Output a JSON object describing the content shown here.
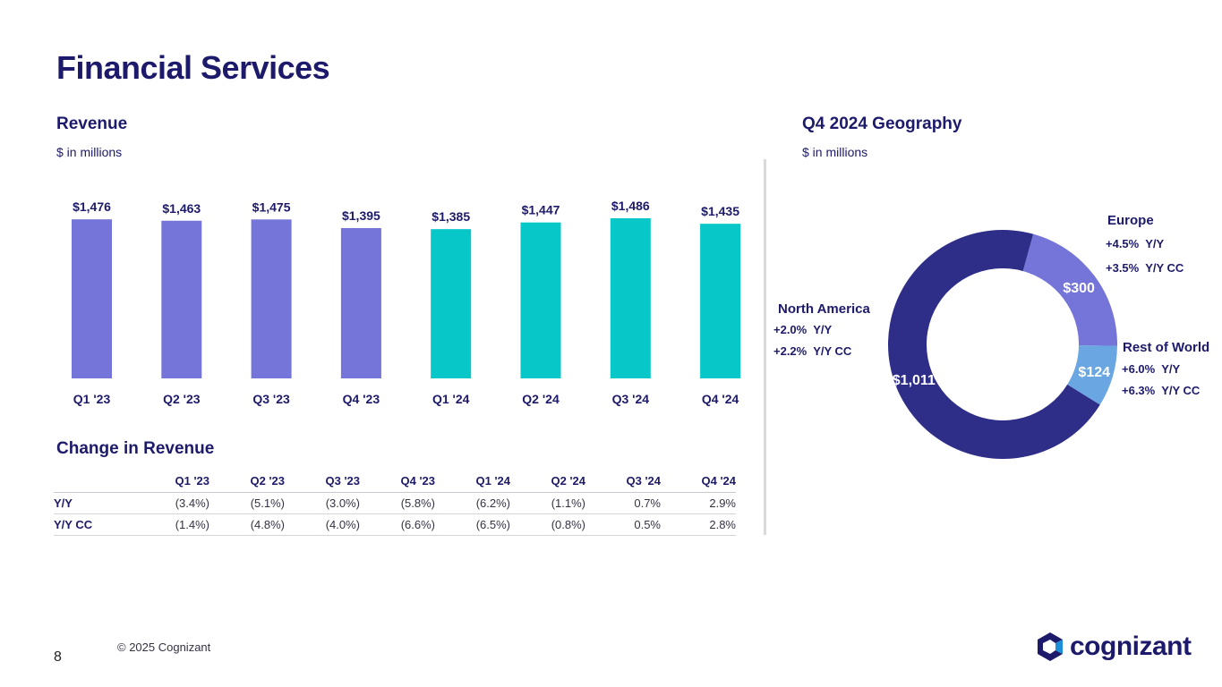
{
  "page": {
    "title": "Financial Services",
    "footer": "© 2025 Cognizant",
    "page_number": "8",
    "logo_text": "cognizant"
  },
  "revenue": {
    "title": "Revenue",
    "subtitle": "$ in millions"
  },
  "change": {
    "title": "Change in Revenue",
    "columns": [
      "Q1 '23",
      "Q2 '23",
      "Q3 '23",
      "Q4 '23",
      "Q1 '24",
      "Q2 '24",
      "Q3 '24",
      "Q4 '24"
    ],
    "rows": [
      {
        "label": "Y/Y",
        "values": [
          "(3.4%)",
          "(5.1%)",
          "(3.0%)",
          "(5.8%)",
          "(6.2%)",
          "(1.1%)",
          "0.7%",
          "2.9%"
        ]
      },
      {
        "label": "Y/Y CC",
        "values": [
          "(1.4%)",
          "(4.8%)",
          "(4.0%)",
          "(6.6%)",
          "(6.5%)",
          "(0.8%)",
          "0.5%",
          "2.8%"
        ]
      }
    ]
  },
  "geo": {
    "title": "Q4 2024 Geography",
    "subtitle": "$ in millions",
    "regions": [
      {
        "name": "North America",
        "yy": "+2.0%  Y/Y",
        "yycc": "+2.2%  Y/Y CC"
      },
      {
        "name": "Europe",
        "yy": "+4.5%  Y/Y",
        "yycc": "+3.5%  Y/Y CC"
      },
      {
        "name": "Rest of World",
        "yy": "+6.0%  Y/Y",
        "yycc": "+6.3%  Y/Y CC"
      }
    ]
  },
  "chart_data": [
    {
      "type": "bar",
      "categories": [
        "Q1 '23",
        "Q2 '23",
        "Q3 '23",
        "Q4 '23",
        "Q1 '24",
        "Q2 '24",
        "Q3 '24",
        "Q4 '24"
      ],
      "values": [
        1476,
        1463,
        1475,
        1395,
        1385,
        1447,
        1486,
        1435
      ],
      "labels": [
        "$1,476",
        "$1,463",
        "$1,475",
        "$1,395",
        "$1,385",
        "$1,447",
        "$1,486",
        "$1,435"
      ],
      "colors": [
        "#7474d9",
        "#7474d9",
        "#7474d9",
        "#7474d9",
        "#07c7c9",
        "#07c7c9",
        "#07c7c9",
        "#07c7c9"
      ],
      "ylim": [
        0,
        1520
      ],
      "grid": false
    },
    {
      "type": "pie",
      "categories": [
        "Europe",
        "Rest of World",
        "North America"
      ],
      "values": [
        300,
        124,
        1011
      ],
      "labels": [
        "$300",
        "$124",
        "$1,011"
      ],
      "colors": [
        "#7474d9",
        "#6aa6e2",
        "#2e2d88"
      ]
    }
  ]
}
